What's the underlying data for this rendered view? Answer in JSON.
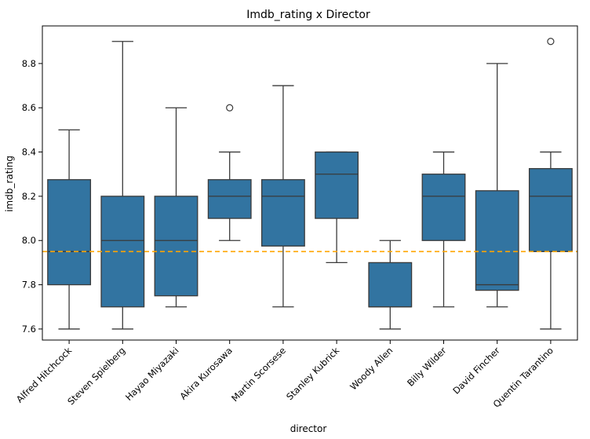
{
  "chart_data": {
    "type": "box",
    "title": "Imdb_rating x Director",
    "xlabel": "director",
    "ylabel": "imdb_rating",
    "ylim": [
      7.55,
      8.97
    ],
    "yticks": [
      7.6,
      7.8,
      8.0,
      8.2,
      8.4,
      8.6,
      8.8
    ],
    "ytick_labels": [
      "7.6",
      "7.8",
      "8.0",
      "8.2",
      "8.4",
      "8.6",
      "8.8"
    ],
    "box_color": "#3274a1",
    "line_color": "#3a3a3a",
    "reference_line": {
      "value": 7.95,
      "color": "#ffa500",
      "style": "dashed"
    },
    "grid": false,
    "categories": [
      "Alfred Hitchcock",
      "Steven Spielberg",
      "Hayao Miyazaki",
      "Akira Kurosawa",
      "Martin Scorsese",
      "Stanley Kubrick",
      "Woody Allen",
      "Billy Wilder",
      "David Fincher",
      "Quentin Tarantino"
    ],
    "boxes": [
      {
        "min": 7.6,
        "q1": 7.8,
        "median": 7.95,
        "q3": 8.275,
        "max": 8.5,
        "outliers": []
      },
      {
        "min": 7.6,
        "q1": 7.7,
        "median": 8.0,
        "q3": 8.2,
        "max": 8.9,
        "outliers": []
      },
      {
        "min": 7.7,
        "q1": 7.75,
        "median": 8.0,
        "q3": 8.2,
        "max": 8.6,
        "outliers": []
      },
      {
        "min": 8.0,
        "q1": 8.1,
        "median": 8.2,
        "q3": 8.275,
        "max": 8.4,
        "outliers": [
          8.6
        ]
      },
      {
        "min": 7.7,
        "q1": 7.975,
        "median": 8.2,
        "q3": 8.275,
        "max": 8.7,
        "outliers": []
      },
      {
        "min": 7.9,
        "q1": 8.1,
        "median": 8.3,
        "q3": 8.4,
        "max": 8.4,
        "outliers": []
      },
      {
        "min": 7.6,
        "q1": 7.7,
        "median": 7.7,
        "q3": 7.9,
        "max": 8.0,
        "outliers": []
      },
      {
        "min": 7.7,
        "q1": 8.0,
        "median": 8.2,
        "q3": 8.3,
        "max": 8.4,
        "outliers": []
      },
      {
        "min": 7.7,
        "q1": 7.775,
        "median": 7.8,
        "q3": 8.225,
        "max": 8.8,
        "outliers": []
      },
      {
        "min": 7.6,
        "q1": 7.95,
        "median": 8.2,
        "q3": 8.325,
        "max": 8.4,
        "outliers": [
          8.9
        ]
      }
    ]
  }
}
